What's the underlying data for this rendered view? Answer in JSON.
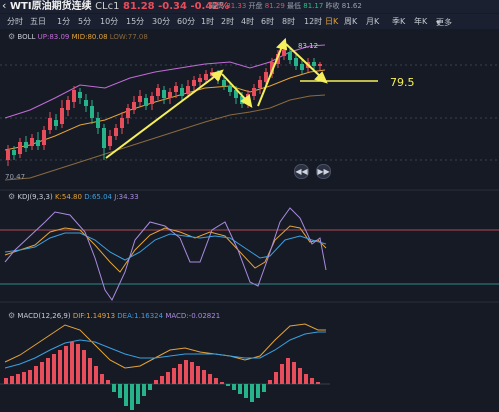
{
  "header": {
    "back_icon": "chevron-left-icon",
    "title": "WTI原油期货连续",
    "code": "CLc1",
    "last_price": "81.28",
    "change": "-0.34",
    "change_pct": "-0.42%",
    "high_label": "最高",
    "high": "81.33",
    "open_label": "开盘",
    "open": "81.29",
    "low_label": "最低",
    "low": "81.17",
    "prev_close_label": "昨收",
    "prev_close": "81.62"
  },
  "periods": [
    "分时",
    "五日",
    "1分",
    "5分",
    "10分",
    "15分",
    "30分",
    "60分",
    "1时",
    "2时",
    "4时",
    "6时",
    "8时",
    "12时",
    "日K",
    "周K",
    "月K",
    "年K",
    "更多"
  ],
  "active_period": "日K",
  "more_icon": "caret-down-icon",
  "boll": {
    "settings_icon": "gear-icon",
    "name": "BOLL",
    "up": "UP:83.09",
    "mid": "MID:80.08",
    "low": "LOW:77.08",
    "colors": {
      "up": "#c06cd8",
      "mid": "#e3a33a",
      "low": "#8a6a40"
    }
  },
  "annotation": {
    "level": "79.5",
    "color": "#f5f05a",
    "peak_label": "83.12",
    "min_label": "70.47"
  },
  "nav": {
    "rewind_icon": "rewind-icon",
    "forward_icon": "fast-forward-icon"
  },
  "kdj": {
    "settings_icon": "gear-icon",
    "name": "KDJ(9,3,3)",
    "k": "K:54.80",
    "d": "D:65.04",
    "j": "J:34.33",
    "colors": {
      "k": "#e3a33a",
      "d": "#3aa0e0",
      "j": "#a98be0"
    }
  },
  "macd": {
    "settings_icon": "gear-icon",
    "name": "MACD(12,26,9)",
    "dif": "DIF:1.14913",
    "dea": "DEA:1.16324",
    "macd": "MACD:-0.02821",
    "colors": {
      "dif": "#e3a33a",
      "dea": "#3aa0e0",
      "macd": "#a98be0"
    }
  },
  "colors": {
    "up": "#e84d5b",
    "down": "#26b38a",
    "bg": "#161a24",
    "accent": "#e3a33a"
  }
}
